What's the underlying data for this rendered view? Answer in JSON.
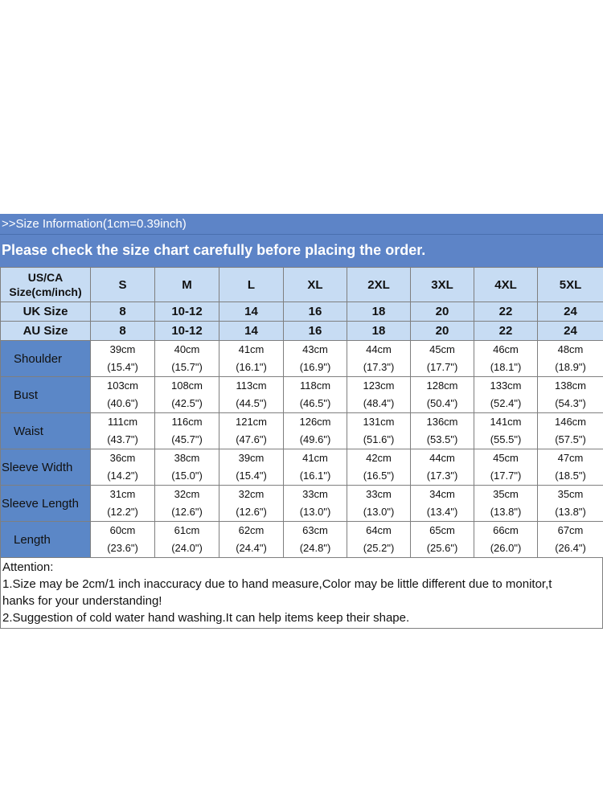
{
  "header": {
    "info": ">>Size Information(1cm=0.39inch)",
    "notice": "Please check the size chart carefully before placing the order."
  },
  "table": {
    "corner_label_line1": "US/CA",
    "corner_label_line2": "Size(cm/inch)",
    "sizes": [
      "S",
      "M",
      "L",
      "XL",
      "2XL",
      "3XL",
      "4XL",
      "5XL"
    ],
    "uk_label": "UK Size",
    "uk_sizes": [
      "8",
      "10-12",
      "14",
      "16",
      "18",
      "20",
      "22",
      "24"
    ],
    "au_label": "AU Size",
    "au_sizes": [
      "8",
      "10-12",
      "14",
      "16",
      "18",
      "20",
      "22",
      "24"
    ],
    "rows": [
      {
        "label": "Shoulder",
        "cm": [
          "39cm",
          "40cm",
          "41cm",
          "43cm",
          "44cm",
          "45cm",
          "46cm",
          "48cm"
        ],
        "inch": [
          "(15.4\")",
          "(15.7\")",
          "(16.1\")",
          "(16.9\")",
          "(17.3\")",
          "(17.7\")",
          "(18.1\")",
          "(18.9\")"
        ]
      },
      {
        "label": "Bust",
        "cm": [
          "103cm",
          "108cm",
          "113cm",
          "118cm",
          "123cm",
          "128cm",
          "133cm",
          "138cm"
        ],
        "inch": [
          "(40.6\")",
          "(42.5\")",
          "(44.5\")",
          "(46.5\")",
          "(48.4\")",
          "(50.4\")",
          "(52.4\")",
          "(54.3\")"
        ]
      },
      {
        "label": "Waist",
        "cm": [
          "111cm",
          "116cm",
          "121cm",
          "126cm",
          "131cm",
          "136cm",
          "141cm",
          "146cm"
        ],
        "inch": [
          "(43.7\")",
          "(45.7\")",
          "(47.6\")",
          "(49.6\")",
          "(51.6\")",
          "(53.5\")",
          "(55.5\")",
          "(57.5\")"
        ]
      },
      {
        "label": "Sleeve Width",
        "cm": [
          "36cm",
          "38cm",
          "39cm",
          "41cm",
          "42cm",
          "44cm",
          "45cm",
          "47cm"
        ],
        "inch": [
          "(14.2\")",
          "(15.0\")",
          "(15.4\")",
          "(16.1\")",
          "(16.5\")",
          "(17.3\")",
          "(17.7\")",
          "(18.5\")"
        ]
      },
      {
        "label": "Sleeve Length",
        "cm": [
          "31cm",
          "32cm",
          "32cm",
          "33cm",
          "33cm",
          "34cm",
          "35cm",
          "35cm"
        ],
        "inch": [
          "(12.2\")",
          "(12.6\")",
          "(12.6\")",
          "(13.0\")",
          "(13.0\")",
          "(13.4\")",
          "(13.8\")",
          "(13.8\")"
        ]
      },
      {
        "label": "Length",
        "cm": [
          "60cm",
          "61cm",
          "62cm",
          "63cm",
          "64cm",
          "65cm",
          "66cm",
          "67cm"
        ],
        "inch": [
          "(23.6\")",
          "(24.0\")",
          "(24.4\")",
          "(24.8\")",
          "(25.2\")",
          "(25.6\")",
          "(26.0\")",
          "(26.4\")"
        ]
      }
    ]
  },
  "notes": {
    "title": "Attention:",
    "line1": "1.Size may be 2cm/1 inch inaccuracy due to hand measure,Color may be little different due to monitor,t",
    "line2": "hanks for your understanding!",
    "line3": "2.Suggestion of cold water hand washing.It can help items keep their shape."
  }
}
